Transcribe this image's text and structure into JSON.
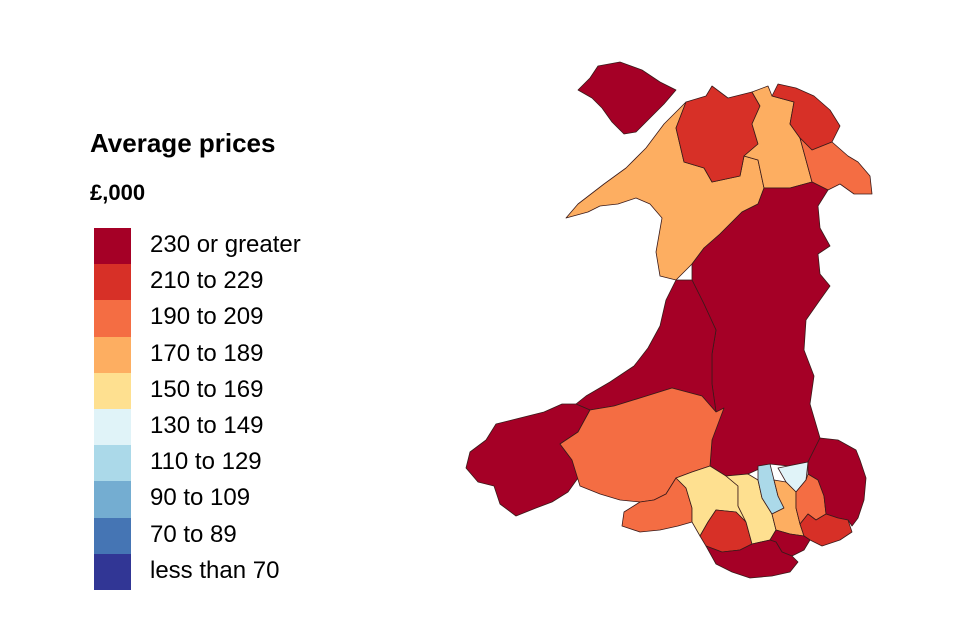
{
  "legend": {
    "title": "Average prices",
    "subtitle": "£,000",
    "items": [
      {
        "label": "230 or greater",
        "color": "#a50026"
      },
      {
        "label": "210 to 229",
        "color": "#d73027"
      },
      {
        "label": "190 to 209",
        "color": "#f46d43"
      },
      {
        "label": "170 to 189",
        "color": "#fdae61"
      },
      {
        "label": "150 to 169",
        "color": "#fee090"
      },
      {
        "label": "130 to 149",
        "color": "#e0f3f8"
      },
      {
        "label": "110 to 129",
        "color": "#abd9e9"
      },
      {
        "label": "90 to 109",
        "color": "#74add1"
      },
      {
        "label": "70 to 89",
        "color": "#4575b4"
      },
      {
        "label": "less than 70",
        "color": "#313695"
      }
    ]
  },
  "map": {
    "regions": [
      {
        "id": "isle-of-anglesey",
        "band": "230 or greater",
        "color": "#a50026"
      },
      {
        "id": "gwynedd",
        "band": "170 to 189",
        "color": "#fdae61"
      },
      {
        "id": "conwy",
        "band": "210 to 229",
        "color": "#d73027"
      },
      {
        "id": "denbighshire",
        "band": "170 to 189",
        "color": "#fdae61"
      },
      {
        "id": "flintshire",
        "band": "210 to 229",
        "color": "#d73027"
      },
      {
        "id": "wrexham",
        "band": "190 to 209",
        "color": "#f46d43"
      },
      {
        "id": "powys",
        "band": "230 or greater",
        "color": "#a50026"
      },
      {
        "id": "ceredigion",
        "band": "230 or greater",
        "color": "#a50026"
      },
      {
        "id": "pembrokeshire",
        "band": "230 or greater",
        "color": "#a50026"
      },
      {
        "id": "carmarthenshire",
        "band": "190 to 209",
        "color": "#f46d43"
      },
      {
        "id": "swansea",
        "band": "190 to 209",
        "color": "#f46d43"
      },
      {
        "id": "neath-port-talbot",
        "band": "150 to 169",
        "color": "#fee090"
      },
      {
        "id": "bridgend",
        "band": "210 to 229",
        "color": "#d73027"
      },
      {
        "id": "rhondda-cynon-taf",
        "band": "150 to 169",
        "color": "#fee090"
      },
      {
        "id": "merthyr-tydfil",
        "band": "110 to 129",
        "color": "#abd9e9"
      },
      {
        "id": "blaenau-gwent",
        "band": "130 to 149",
        "color": "#e0f3f8"
      },
      {
        "id": "caerphilly",
        "band": "170 to 189",
        "color": "#fdae61"
      },
      {
        "id": "torfaen",
        "band": "190 to 209",
        "color": "#f46d43"
      },
      {
        "id": "monmouthshire",
        "band": "230 or greater",
        "color": "#a50026"
      },
      {
        "id": "newport",
        "band": "210 to 229",
        "color": "#d73027"
      },
      {
        "id": "cardiff",
        "band": "230 or greater",
        "color": "#a50026"
      },
      {
        "id": "vale-of-glamorgan",
        "band": "230 or greater",
        "color": "#a50026"
      }
    ]
  }
}
